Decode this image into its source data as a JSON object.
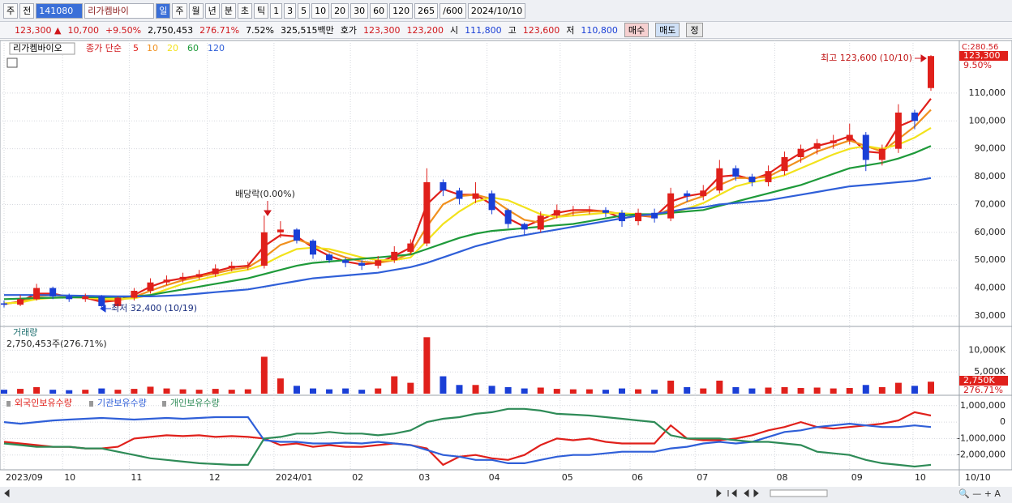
{
  "toolbar": {
    "items": [
      "주",
      "전",
      "141080",
      "리가켐바이",
      "일",
      "주",
      "월",
      "년",
      "분",
      "초",
      "틱",
      "1",
      "3",
      "5",
      "10",
      "20",
      "30",
      "60",
      "120",
      "265",
      "/600",
      "2024/10/10"
    ]
  },
  "quote": {
    "price": "123,300 ▲",
    "change": "10,700",
    "rate": "+9.50%",
    "volume": "2,750,453",
    "volume_ratio": "276.71%",
    "turnover": "7.52%",
    "amount": "325,515백만",
    "bid_label": "호가",
    "ask": "123,300",
    "bid": "123,200",
    "open_label": "시",
    "open": "111,800",
    "high_label": "고",
    "high": "123,600",
    "low_label": "저",
    "low": "110,800",
    "buy": "매수",
    "sell": "매도",
    "eval": "정"
  },
  "chart_data": [
    {
      "type": "candlestick",
      "title": "리가켐바이오",
      "legend_label": "종가 단순",
      "up_color": "#e0201b",
      "down_color": "#1a3fd6",
      "open": [
        34500,
        34000,
        36000,
        40000,
        37000,
        36000,
        37000,
        33500,
        36500,
        39000,
        42000,
        43000,
        44000,
        45000,
        47000,
        48000,
        48000,
        60000,
        61000,
        57000,
        52000,
        50000,
        49000,
        48000,
        50000,
        53000,
        56000,
        78000,
        75000,
        72000,
        74000,
        68000,
        63000,
        61000,
        66000,
        68000,
        68000,
        68000,
        67000,
        64000,
        67000,
        65000,
        74000,
        73000,
        75000,
        83000,
        80000,
        78000,
        82000,
        87000,
        90000,
        92000,
        93000,
        95000,
        86000,
        90000,
        103000,
        111800
      ],
      "high": [
        35500,
        37500,
        41500,
        40500,
        38000,
        38000,
        37500,
        37000,
        40000,
        43500,
        44500,
        45500,
        46500,
        48500,
        49500,
        49500,
        66000,
        64000,
        61500,
        57500,
        52500,
        51000,
        50000,
        51500,
        55000,
        57500,
        83000,
        79000,
        76000,
        78000,
        75000,
        68500,
        63500,
        67500,
        70000,
        69500,
        69500,
        69000,
        68000,
        68500,
        68500,
        76000,
        75000,
        77000,
        86000,
        84000,
        81000,
        84000,
        89000,
        91500,
        93500,
        95000,
        99000,
        96000,
        91500,
        106000,
        104000,
        123600
      ],
      "low": [
        33000,
        33500,
        35500,
        36000,
        35000,
        35000,
        32400,
        33000,
        35500,
        38000,
        41000,
        42000,
        43000,
        44000,
        46000,
        46500,
        47000,
        58000,
        56000,
        50500,
        49000,
        47500,
        46500,
        47000,
        49000,
        52000,
        55000,
        73000,
        70000,
        70500,
        66500,
        61500,
        59000,
        60000,
        65000,
        66000,
        66500,
        65500,
        62000,
        62500,
        63500,
        64000,
        71000,
        71500,
        74000,
        78500,
        76500,
        76500,
        80500,
        85000,
        88000,
        90000,
        91500,
        82000,
        84000,
        88500,
        97000,
        110800
      ],
      "close": [
        34000,
        36000,
        40000,
        37000,
        36000,
        37000,
        33500,
        36500,
        39000,
        42000,
        43000,
        44000,
        45000,
        47000,
        48000,
        48000,
        60000,
        61000,
        57000,
        52000,
        50000,
        49000,
        48000,
        50000,
        53000,
        56000,
        78000,
        75000,
        72000,
        74000,
        68000,
        63000,
        61000,
        66000,
        68000,
        68000,
        68000,
        67000,
        64000,
        67000,
        65000,
        74000,
        73000,
        75000,
        83000,
        80000,
        78000,
        82000,
        87000,
        90000,
        92000,
        93000,
        95000,
        86000,
        90000,
        103000,
        100000,
        123300
      ],
      "series": [
        {
          "name": "5",
          "color": "#e0201b",
          "values": [
            34200,
            35200,
            38000,
            38000,
            36800,
            36500,
            35000,
            35500,
            37500,
            40500,
            42500,
            43500,
            44500,
            46000,
            47500,
            48000,
            55000,
            59000,
            58500,
            54500,
            51500,
            49500,
            48500,
            49000,
            51500,
            54500,
            70000,
            75500,
            73500,
            73500,
            70000,
            65000,
            62000,
            64500,
            67000,
            68000,
            68000,
            67500,
            65000,
            66000,
            65500,
            71000,
            73000,
            74000,
            80000,
            80500,
            79000,
            81000,
            85000,
            88500,
            91000,
            92500,
            94500,
            89000,
            88500,
            98000,
            100500,
            108000
          ]
        },
        {
          "name": "10",
          "color": "#f0901e",
          "values": [
            34300,
            35000,
            37000,
            37500,
            37000,
            36600,
            35800,
            35600,
            36800,
            39000,
            41000,
            42800,
            44000,
            45300,
            46600,
            47400,
            51000,
            55500,
            57500,
            55500,
            53000,
            51000,
            49500,
            49000,
            50000,
            52500,
            62000,
            70000,
            73000,
            73500,
            72000,
            68000,
            64500,
            63500,
            65500,
            67000,
            67500,
            67500,
            66500,
            66000,
            65800,
            68500,
            71000,
            73000,
            77000,
            79500,
            79500,
            80000,
            83000,
            86000,
            89000,
            91000,
            93000,
            91000,
            89000,
            93500,
            98000,
            104000
          ]
        },
        {
          "name": "20",
          "color": "#f2e21c",
          "values": [
            34500,
            34800,
            36000,
            36500,
            36700,
            36600,
            36200,
            36000,
            36300,
            37500,
            39500,
            41500,
            43000,
            44300,
            45600,
            46600,
            48500,
            51500,
            54000,
            54500,
            54000,
            52500,
            51000,
            50000,
            50000,
            51000,
            57000,
            63000,
            67500,
            71000,
            72500,
            71500,
            69000,
            66500,
            65500,
            66000,
            66500,
            67000,
            66800,
            66500,
            66200,
            67000,
            68500,
            70500,
            73500,
            76500,
            78000,
            79000,
            80500,
            83000,
            85500,
            88000,
            90000,
            91000,
            90000,
            91500,
            94000,
            97500
          ]
        },
        {
          "name": "60",
          "color": "#1e9a3a",
          "values": [
            36000,
            36200,
            36400,
            36500,
            36600,
            36700,
            36700,
            36800,
            37000,
            37500,
            38500,
            39500,
            40500,
            41500,
            42500,
            43500,
            45000,
            46500,
            48000,
            49000,
            49500,
            50000,
            50500,
            51000,
            51500,
            52000,
            54000,
            56000,
            58000,
            59500,
            60500,
            61000,
            61500,
            62000,
            62500,
            63000,
            64000,
            65000,
            66000,
            66500,
            66500,
            67000,
            67500,
            68000,
            69500,
            71000,
            72500,
            74000,
            75500,
            77000,
            79000,
            81000,
            83000,
            84000,
            85000,
            86500,
            88500,
            91000
          ]
        },
        {
          "name": "120",
          "color": "#2f5fd8",
          "values": [
            37500,
            37500,
            37500,
            37400,
            37300,
            37200,
            37100,
            37000,
            37000,
            37000,
            37200,
            37500,
            38000,
            38500,
            39000,
            39500,
            40500,
            41500,
            42500,
            43500,
            44000,
            44500,
            45000,
            45500,
            46500,
            47500,
            49000,
            51000,
            53000,
            55000,
            56500,
            58000,
            59000,
            60000,
            61000,
            62000,
            63000,
            64000,
            65000,
            66000,
            66500,
            67500,
            68500,
            69000,
            70000,
            70500,
            71000,
            71500,
            72500,
            73500,
            74500,
            75500,
            76500,
            77000,
            77500,
            78000,
            78500,
            79500
          ]
        }
      ],
      "ylim": [
        26500,
        128300
      ],
      "yticks": [
        {
          "value": 30000,
          "label": "30,000"
        },
        {
          "value": 40000,
          "label": "40,000"
        },
        {
          "value": 50000,
          "label": "50,000"
        },
        {
          "value": 60000,
          "label": "60,000"
        },
        {
          "value": 70000,
          "label": "70,000"
        },
        {
          "value": 80000,
          "label": "80,000"
        },
        {
          "value": 90000,
          "label": "90,000"
        },
        {
          "value": 100000,
          "label": "100,000"
        },
        {
          "value": 110000,
          "label": "110,000"
        }
      ],
      "high_label": "최고 123,600 (10/10)",
      "low_label": "최저 32,400 (10/19)",
      "event_label": "배당락(0.00%)",
      "top_label": "C:280.56",
      "last_label": "123,300",
      "change_label": "9.50%",
      "grid": true
    },
    {
      "type": "bar",
      "title": "거래량",
      "subtitle": "2,750,453주(276.71%)",
      "values": [
        900,
        1100,
        1500,
        900,
        800,
        900,
        1200,
        900,
        1100,
        1600,
        1200,
        1000,
        900,
        1100,
        900,
        1000,
        8500,
        3500,
        1800,
        1200,
        1000,
        1200,
        900,
        1200,
        4000,
        2500,
        13000,
        4000,
        2000,
        2000,
        1800,
        1500,
        1200,
        1400,
        1100,
        1000,
        1000,
        900,
        1200,
        1000,
        900,
        3000,
        1500,
        1200,
        3000,
        1500,
        1200,
        1400,
        1500,
        1300,
        1400,
        1200,
        1300,
        2000,
        1500,
        2500,
        1800,
        2750
      ],
      "ylim": [
        0,
        15300
      ],
      "yticks": [
        {
          "value": 5000,
          "label": "5,000K"
        },
        {
          "value": 10000,
          "label": "10,000K"
        }
      ],
      "last_value_label": "2,750K",
      "last_ratio_label": "276.71%",
      "grid": true
    },
    {
      "type": "line",
      "series": [
        {
          "name": "외국인보유수량",
          "color": "#e0201b",
          "values": [
            -1200000,
            -1300000,
            -1400000,
            -1500000,
            -1500000,
            -1600000,
            -1600000,
            -1500000,
            -1000000,
            -900000,
            -800000,
            -850000,
            -800000,
            -900000,
            -850000,
            -900000,
            -1000000,
            -1400000,
            -1300000,
            -1500000,
            -1400000,
            -1500000,
            -1500000,
            -1400000,
            -1300000,
            -1400000,
            -1600000,
            -2600000,
            -2100000,
            -2000000,
            -2200000,
            -2300000,
            -2000000,
            -1400000,
            -1000000,
            -1100000,
            -1000000,
            -1200000,
            -1300000,
            -1300000,
            -1300000,
            -200000,
            -1000000,
            -1100000,
            -1100000,
            -1000000,
            -800000,
            -500000,
            -300000,
            0,
            -300000,
            -400000,
            -300000,
            -200000,
            -100000,
            100000,
            600000,
            400000
          ]
        },
        {
          "name": "기관보유수량",
          "color": "#2f5fd8",
          "values": [
            0,
            -100000,
            0,
            100000,
            150000,
            200000,
            250000,
            200000,
            150000,
            200000,
            250000,
            200000,
            250000,
            300000,
            300000,
            300000,
            -1100000,
            -1200000,
            -1200000,
            -1300000,
            -1300000,
            -1250000,
            -1300000,
            -1200000,
            -1300000,
            -1400000,
            -1700000,
            -2000000,
            -2100000,
            -2300000,
            -2300000,
            -2500000,
            -2500000,
            -2300000,
            -2100000,
            -2000000,
            -2000000,
            -1900000,
            -1800000,
            -1800000,
            -1800000,
            -1600000,
            -1500000,
            -1300000,
            -1200000,
            -1300000,
            -1200000,
            -900000,
            -600000,
            -500000,
            -300000,
            -200000,
            -100000,
            -200000,
            -300000,
            -300000,
            -200000,
            -300000
          ]
        },
        {
          "name": "개인보유수량",
          "color": "#2e8b57",
          "values": [
            -1300000,
            -1400000,
            -1500000,
            -1500000,
            -1500000,
            -1600000,
            -1600000,
            -1800000,
            -2000000,
            -2200000,
            -2300000,
            -2400000,
            -2500000,
            -2550000,
            -2600000,
            -2600000,
            -1000000,
            -900000,
            -700000,
            -700000,
            -600000,
            -700000,
            -700000,
            -800000,
            -700000,
            -500000,
            0,
            200000,
            300000,
            500000,
            600000,
            800000,
            800000,
            700000,
            500000,
            450000,
            400000,
            300000,
            200000,
            100000,
            0,
            -800000,
            -1000000,
            -1000000,
            -1000000,
            -1100000,
            -1200000,
            -1200000,
            -1300000,
            -1400000,
            -1800000,
            -1900000,
            -2000000,
            -2300000,
            -2500000,
            -2600000,
            -2700000,
            -2600000
          ]
        }
      ],
      "ylim": [
        -2800000,
        1530000
      ],
      "yticks": [
        {
          "value": 1000000,
          "label": "1,000,000"
        },
        0,
        {
          "value": -1000000,
          "label": "-1,000,000"
        },
        {
          "value": -2000000,
          "label": "-2,000,000"
        }
      ],
      "xlim": [
        0,
        57
      ],
      "xticks": [
        {
          "value": 0,
          "label": "2023/09"
        },
        {
          "value": 3.6,
          "label": "10"
        },
        {
          "value": 7.7,
          "label": "11"
        },
        {
          "value": 12.5,
          "label": "12"
        },
        {
          "value": 16.6,
          "label": "2024/01"
        },
        {
          "value": 21.3,
          "label": "02"
        },
        {
          "value": 25.4,
          "label": "03"
        },
        {
          "value": 29.7,
          "label": "04"
        },
        {
          "value": 34.2,
          "label": "05"
        },
        {
          "value": 38.5,
          "label": "06"
        },
        {
          "value": 42.5,
          "label": "07"
        },
        {
          "value": 47.4,
          "label": "08"
        },
        {
          "value": 52,
          "label": "09"
        },
        {
          "value": 55.9,
          "label": "10"
        }
      ],
      "x_end_label": "10/10",
      "grid": true
    }
  ]
}
